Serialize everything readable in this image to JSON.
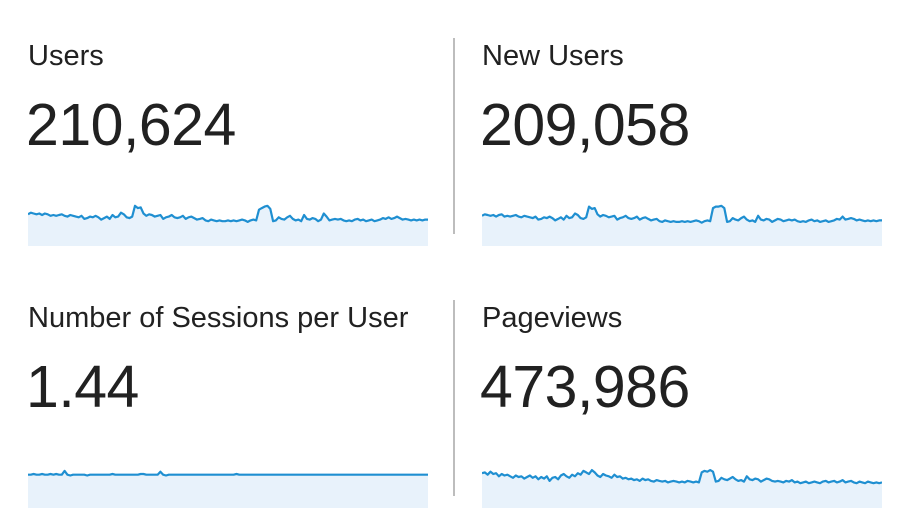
{
  "metrics": [
    {
      "label": "Users",
      "value": "210,624",
      "series": [
        44,
        46,
        45,
        44,
        45,
        43,
        45,
        44,
        42,
        43,
        42,
        43,
        44,
        42,
        41,
        43,
        42,
        41,
        40,
        42,
        38,
        39,
        41,
        40,
        42,
        40,
        37,
        39,
        41,
        38,
        43,
        40,
        41,
        46,
        44,
        40,
        39,
        41,
        55,
        52,
        53,
        45,
        42,
        44,
        43,
        41,
        42,
        43,
        38,
        40,
        41,
        43,
        40,
        39,
        40,
        42,
        38,
        40,
        41,
        39,
        37,
        38,
        39,
        36,
        35,
        37,
        36,
        35,
        36,
        35,
        35,
        36,
        35,
        36,
        35,
        36,
        37,
        36,
        34,
        36,
        37,
        36,
        50,
        52,
        54,
        55,
        51,
        35,
        36,
        40,
        38,
        37,
        40,
        42,
        38,
        36,
        37,
        35,
        43,
        38,
        37,
        39,
        38,
        35,
        37,
        45,
        41,
        36,
        37,
        38,
        37,
        38,
        36,
        35,
        36,
        35,
        37,
        38,
        36,
        37,
        35,
        36,
        37,
        35,
        36,
        37,
        39,
        38,
        40,
        38,
        39,
        41,
        39,
        37,
        38,
        37,
        36,
        37,
        36,
        37,
        36,
        37,
        37
      ],
      "color": "#1f8fd1",
      "fill": "#e8f2fb"
    },
    {
      "label": "New Users",
      "value": "209,058",
      "series": [
        42,
        44,
        43,
        42,
        43,
        41,
        43,
        44,
        41,
        42,
        41,
        42,
        43,
        41,
        40,
        42,
        41,
        40,
        39,
        41,
        37,
        38,
        40,
        39,
        41,
        39,
        36,
        38,
        40,
        37,
        42,
        39,
        40,
        45,
        43,
        39,
        38,
        40,
        54,
        51,
        52,
        44,
        41,
        43,
        42,
        40,
        41,
        42,
        37,
        39,
        40,
        42,
        39,
        38,
        39,
        41,
        37,
        39,
        40,
        38,
        36,
        37,
        38,
        35,
        34,
        36,
        35,
        34,
        35,
        34,
        34,
        35,
        34,
        35,
        34,
        35,
        36,
        35,
        33,
        35,
        36,
        35,
        52,
        54,
        54,
        55,
        52,
        34,
        35,
        39,
        37,
        36,
        39,
        41,
        37,
        35,
        36,
        34,
        42,
        37,
        36,
        38,
        37,
        34,
        36,
        38,
        37,
        35,
        36,
        37,
        36,
        37,
        35,
        34,
        35,
        34,
        36,
        37,
        35,
        36,
        34,
        35,
        36,
        34,
        35,
        36,
        38,
        37,
        41,
        37,
        38,
        39,
        38,
        36,
        37,
        36,
        35,
        36,
        35,
        36,
        35,
        36,
        36
      ],
      "color": "#1f8fd1",
      "fill": "#e8f2fb"
    },
    {
      "label": "Number of Sessions per User",
      "value": "1.44",
      "series": [
        46,
        46,
        47,
        46,
        46,
        47,
        46,
        46,
        47,
        46,
        47,
        46,
        46,
        51,
        46,
        45,
        46,
        46,
        46,
        46,
        46,
        45,
        46,
        46,
        46,
        46,
        46,
        46,
        46,
        46,
        47,
        46,
        46,
        46,
        46,
        46,
        46,
        46,
        46,
        46,
        47,
        47,
        46,
        46,
        46,
        46,
        46,
        50,
        46,
        45,
        46,
        46,
        46,
        46,
        46,
        46,
        46,
        46,
        46,
        46,
        46,
        46,
        46,
        46,
        46,
        46,
        46,
        46,
        46,
        46,
        46,
        46,
        46,
        46,
        47,
        46,
        46,
        46,
        46,
        46,
        46,
        46,
        46,
        46,
        46,
        46,
        46,
        46,
        46,
        46,
        46,
        46,
        46,
        46,
        46,
        46,
        46,
        46,
        46,
        46,
        46,
        46,
        46,
        46,
        46,
        46,
        46,
        46,
        46,
        46,
        46,
        46,
        46,
        46,
        46,
        46,
        46,
        46,
        46,
        46,
        46,
        46,
        46,
        46,
        46,
        46,
        46,
        46,
        46,
        46,
        46,
        46,
        46,
        46,
        46,
        46,
        46,
        46,
        46,
        46,
        46,
        46,
        46
      ],
      "color": "#1f8fd1",
      "fill": "#e8f2fb"
    },
    {
      "label": "Pageviews",
      "value": "473,986",
      "series": [
        48,
        49,
        46,
        50,
        47,
        48,
        44,
        47,
        45,
        46,
        44,
        42,
        45,
        43,
        44,
        41,
        43,
        45,
        42,
        44,
        40,
        43,
        41,
        44,
        38,
        42,
        43,
        40,
        45,
        47,
        44,
        42,
        46,
        44,
        48,
        46,
        51,
        49,
        47,
        52,
        49,
        45,
        43,
        47,
        45,
        44,
        42,
        46,
        43,
        44,
        41,
        42,
        40,
        41,
        39,
        40,
        38,
        41,
        39,
        40,
        38,
        37,
        39,
        38,
        37,
        38,
        36,
        37,
        38,
        37,
        36,
        37,
        36,
        38,
        37,
        36,
        37,
        36,
        49,
        51,
        50,
        52,
        50,
        37,
        38,
        42,
        40,
        39,
        41,
        43,
        40,
        38,
        39,
        37,
        44,
        40,
        39,
        41,
        40,
        37,
        39,
        41,
        40,
        38,
        37,
        38,
        37,
        36,
        38,
        37,
        39,
        36,
        37,
        35,
        36,
        37,
        35,
        36,
        37,
        36,
        35,
        37,
        38,
        36,
        37,
        38,
        36,
        37,
        39,
        36,
        37,
        38,
        36,
        35,
        37,
        36,
        35,
        37,
        36,
        35,
        36,
        35,
        36
      ],
      "color": "#1f8fd1",
      "fill": "#e8f2fb"
    }
  ]
}
